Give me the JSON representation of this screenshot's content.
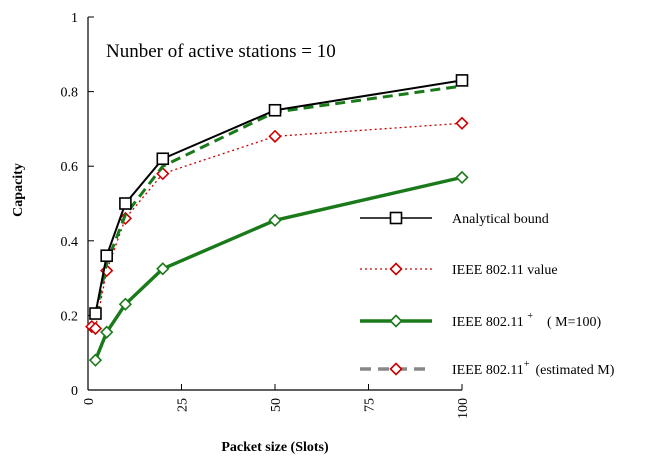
{
  "chart_data": {
    "type": "line",
    "title": "",
    "annotation": "Nunber of active stations = 10",
    "xlabel": "Packet size (Slots)",
    "ylabel": "Capacity",
    "xlim": [
      0,
      100
    ],
    "ylim": [
      0,
      1
    ],
    "x_ticks": [
      "0",
      "25",
      "50",
      "75",
      "100"
    ],
    "y_ticks": [
      "0",
      "0.2",
      "0.4",
      "0.6",
      "0.8",
      "1"
    ],
    "grid": false,
    "legend_position": "right",
    "series": [
      {
        "name": "Analytical bound",
        "color": "#000000",
        "line_style": "solid",
        "marker": "square",
        "x": [
          2,
          5,
          10,
          20,
          50,
          100
        ],
        "y": [
          0.205,
          0.36,
          0.5,
          0.62,
          0.75,
          0.83
        ]
      },
      {
        "name": "IEEE 802.11 value",
        "color": "#cc0000",
        "line_style": "dotted",
        "marker": "diamond",
        "x": [
          1,
          2,
          5,
          10,
          20,
          50,
          100
        ],
        "y": [
          0.17,
          0.165,
          0.32,
          0.46,
          0.58,
          0.68,
          0.715
        ]
      },
      {
        "name": "IEEE 802.11 ",
        "name_sup": "+",
        "name_suffix": "( M=100)",
        "color": "#1a7a1a",
        "line_style": "solid-thick",
        "marker": "diamond",
        "x": [
          2,
          5,
          10,
          20,
          50,
          100
        ],
        "y": [
          0.08,
          0.155,
          0.23,
          0.325,
          0.455,
          0.57
        ]
      },
      {
        "name": "IEEE 802.11",
        "name_sup": "+",
        "name_suffix": "(estimated M)",
        "color": "#1a7a1a",
        "line_style": "dashed",
        "marker": "diamond",
        "x": [
          2,
          5,
          10,
          20,
          50,
          100
        ],
        "y": [
          0.2,
          0.34,
          0.47,
          0.6,
          0.745,
          0.815
        ]
      }
    ]
  }
}
